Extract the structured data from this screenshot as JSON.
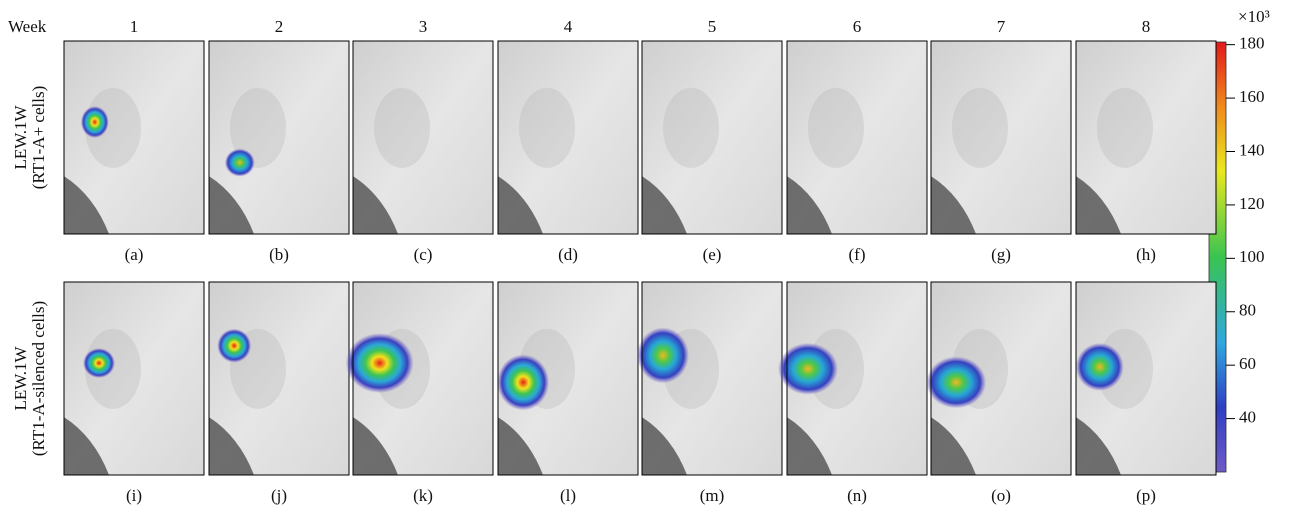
{
  "header": {
    "label": "Week",
    "weeks": [
      "1",
      "2",
      "3",
      "4",
      "5",
      "6",
      "7",
      "8"
    ]
  },
  "rows": [
    {
      "label_lines": [
        "LEW.1W",
        "(RT1-A+ cells)"
      ],
      "panels": [
        "(a)",
        "(b)",
        "(c)",
        "(d)",
        "(e)",
        "(f)",
        "(g)",
        "(h)"
      ]
    },
    {
      "label_lines": [
        "LEW.1W",
        "(RT1-A-silenced cells)"
      ],
      "panels": [
        "(i)",
        "(j)",
        "(k)",
        "(l)",
        "(m)",
        "(n)",
        "(o)",
        "(p)"
      ]
    }
  ],
  "colorbar": {
    "scale_label": "×10³",
    "range": [
      20,
      181
    ],
    "ticks": [
      40,
      60,
      80,
      100,
      120,
      140,
      160,
      180
    ]
  }
}
